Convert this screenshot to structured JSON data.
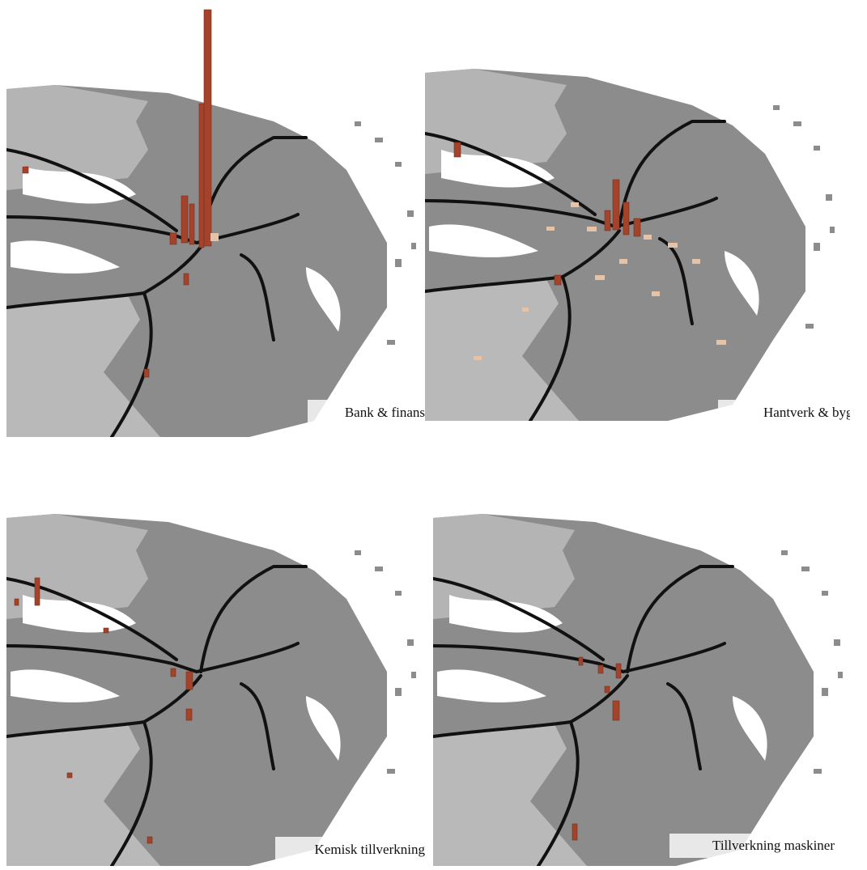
{
  "panels": [
    {
      "label": "Bank & finans"
    },
    {
      "label": "Hantverk & bygg"
    },
    {
      "label": "Kemisk tillverkning"
    },
    {
      "label": "Tillverkning maskiner"
    }
  ]
}
